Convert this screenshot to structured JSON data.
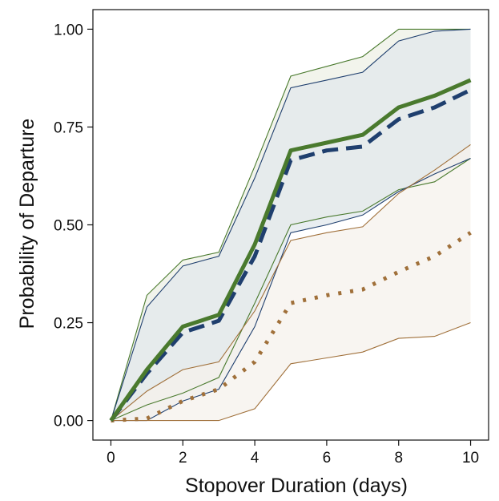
{
  "chart_data": {
    "type": "line",
    "title": "",
    "xlabel": "Stopover Duration (days)",
    "ylabel": "Probability of Departure",
    "xlim": [
      -0.5,
      10.5
    ],
    "ylim": [
      -0.05,
      1.05
    ],
    "x_ticks": [
      0,
      2,
      4,
      6,
      8,
      10
    ],
    "x_tick_labels": [
      "0",
      "2",
      "4",
      "6",
      "8",
      "10"
    ],
    "y_ticks": [
      0,
      0.25,
      0.5,
      0.75,
      1
    ],
    "y_tick_labels": [
      "0.00",
      "0.25",
      "0.50",
      "0.75",
      "1.00"
    ],
    "grid": false,
    "legend": "none",
    "x": [
      0,
      1,
      2,
      3,
      4,
      5,
      6,
      7,
      8,
      9,
      10
    ],
    "series": [
      {
        "color": "#4a7a2e",
        "line_style": "solid",
        "band_fill": "#eef0e6",
        "values": [
          0,
          0.13,
          0.24,
          0.27,
          0.45,
          0.69,
          0.71,
          0.73,
          0.8,
          0.83,
          0.87
        ],
        "lower": [
          0,
          0.04,
          0.07,
          0.11,
          0.3,
          0.5,
          0.52,
          0.535,
          0.59,
          0.61,
          0.67
        ],
        "upper": [
          0,
          0.32,
          0.41,
          0.43,
          0.65,
          0.88,
          0.905,
          0.93,
          1.0,
          1.0,
          1.0
        ]
      },
      {
        "color": "#1f3f6e",
        "line_style": "dashed",
        "band_fill": "#e2e8ec",
        "values": [
          0,
          0.12,
          0.225,
          0.255,
          0.42,
          0.665,
          0.69,
          0.7,
          0.77,
          0.8,
          0.845
        ],
        "lower": [
          0,
          0.0,
          0.05,
          0.08,
          0.24,
          0.48,
          0.5,
          0.525,
          0.585,
          0.63,
          0.67
        ],
        "upper": [
          0,
          0.29,
          0.395,
          0.42,
          0.62,
          0.85,
          0.87,
          0.89,
          0.97,
          0.995,
          1.0
        ]
      },
      {
        "color": "#a0703a",
        "line_style": "dotted",
        "band_fill": "#f5f2ec",
        "values": [
          0,
          0.005,
          0.05,
          0.08,
          0.15,
          0.3,
          0.32,
          0.335,
          0.38,
          0.42,
          0.48
        ],
        "lower": [
          0,
          0,
          0,
          0,
          0.03,
          0.145,
          0.16,
          0.175,
          0.21,
          0.215,
          0.25
        ],
        "upper": [
          0,
          0.075,
          0.13,
          0.15,
          0.28,
          0.46,
          0.48,
          0.495,
          0.58,
          0.64,
          0.705
        ]
      }
    ]
  }
}
